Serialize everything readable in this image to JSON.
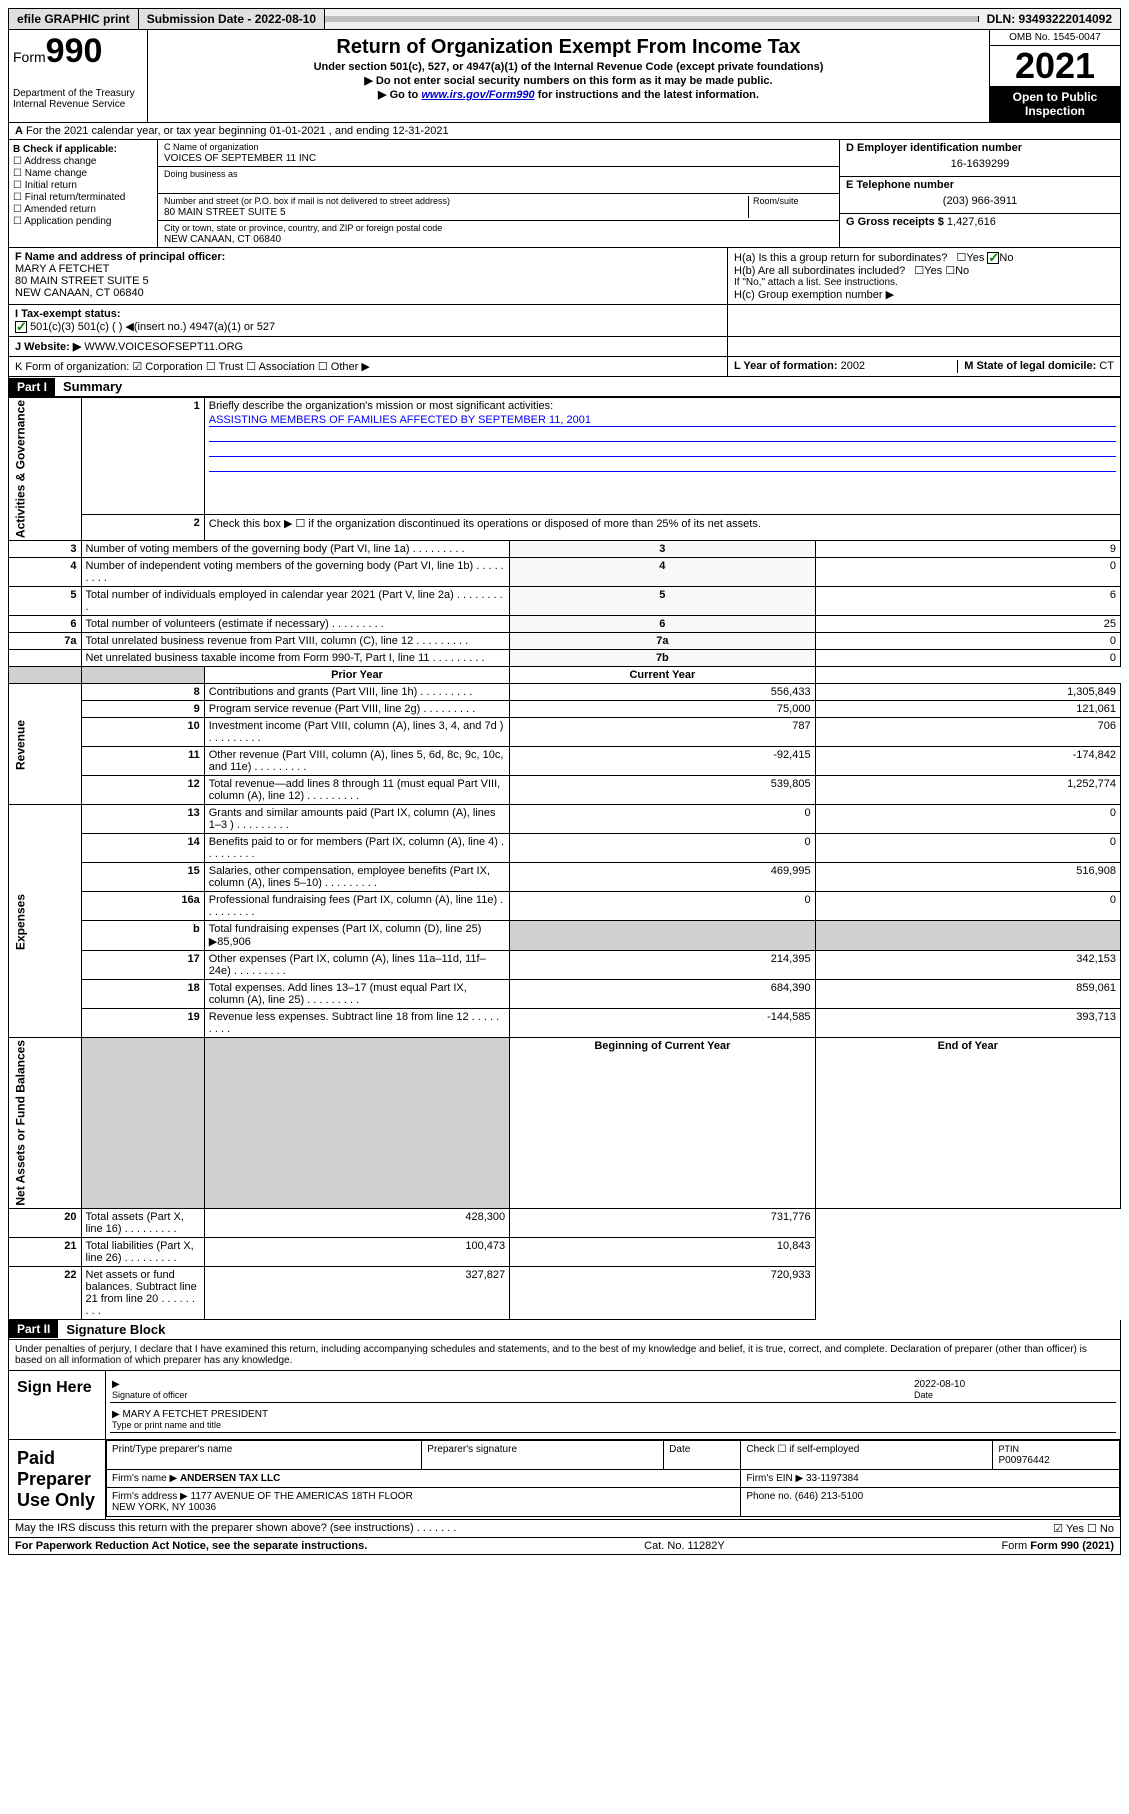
{
  "top": {
    "efile": "efile GRAPHIC print",
    "subdate_label": "Submission Date - 2022-08-10",
    "dln": "DLN: 93493222014092"
  },
  "header": {
    "form_prefix": "Form",
    "form_number": "990",
    "dept": "Department of the Treasury",
    "irs": "Internal Revenue Service",
    "title": "Return of Organization Exempt From Income Tax",
    "sub1": "Under section 501(c), 527, or 4947(a)(1) of the Internal Revenue Code (except private foundations)",
    "sub2": "▶ Do not enter social security numbers on this form as it may be made public.",
    "sub3_prefix": "▶ Go to ",
    "sub3_link": "www.irs.gov/Form990",
    "sub3_suffix": " for instructions and the latest information.",
    "omb": "OMB No. 1545-0047",
    "year": "2021",
    "open": "Open to Public Inspection"
  },
  "lineA": "For the 2021 calendar year, or tax year beginning 01-01-2021   , and ending 12-31-2021",
  "boxB": {
    "label": "B Check if applicable:",
    "opts": [
      "Address change",
      "Name change",
      "Initial return",
      "Final return/terminated",
      "Amended return",
      "Application pending"
    ]
  },
  "boxC": {
    "name_label": "C Name of organization",
    "name": "VOICES OF SEPTEMBER 11 INC",
    "dba_label": "Doing business as",
    "addr_label": "Number and street (or P.O. box if mail is not delivered to street address)",
    "room_label": "Room/suite",
    "addr": "80 MAIN STREET SUITE 5",
    "city_label": "City or town, state or province, country, and ZIP or foreign postal code",
    "city": "NEW CANAAN, CT  06840"
  },
  "boxD": {
    "label": "D Employer identification number",
    "val": "16-1639299"
  },
  "boxE": {
    "label": "E Telephone number",
    "val": "(203) 966-3911"
  },
  "boxG": {
    "label": "G Gross receipts $",
    "val": "1,427,616"
  },
  "boxF": {
    "label": "F  Name and address of principal officer:",
    "name": "MARY A FETCHET",
    "addr1": "80 MAIN STREET SUITE 5",
    "addr2": "NEW CANAAN, CT  06840"
  },
  "boxH": {
    "a": "H(a)  Is this a group return for subordinates?",
    "a_ans": "No",
    "b": "H(b)  Are all subordinates included?",
    "b_note": "If \"No,\" attach a list. See instructions.",
    "c": "H(c)  Group exemption number ▶"
  },
  "boxI": {
    "label": "I   Tax-exempt status:",
    "opts": "501(c)(3)      501(c) (  ) ◀(insert no.)      4947(a)(1) or      527"
  },
  "boxJ": {
    "label": "J   Website: ▶",
    "val": "WWW.VOICESOFSEPT11.ORG"
  },
  "boxK": "K Form of organization:  ☑ Corporation  ☐ Trust  ☐ Association  ☐ Other ▶",
  "boxL": {
    "label": "L Year of formation:",
    "val": "2002"
  },
  "boxM": {
    "label": "M State of legal domicile:",
    "val": "CT"
  },
  "part1": {
    "header": "Part I",
    "title": "Summary",
    "line1": "Briefly describe the organization's mission or most significant activities:",
    "line1_val": "ASSISTING MEMBERS OF FAMILIES AFFECTED BY SEPTEMBER 11, 2001",
    "line2": "Check this box ▶ ☐  if the organization discontinued its operations or disposed of more than 25% of its net assets.",
    "vert_gov": "Activities & Governance",
    "vert_rev": "Revenue",
    "vert_exp": "Expenses",
    "vert_net": "Net Assets or Fund Balances",
    "col_prior": "Prior Year",
    "col_current": "Current Year",
    "col_begin": "Beginning of Current Year",
    "col_end": "End of Year",
    "rows_gov": [
      {
        "n": "3",
        "t": "Number of voting members of the governing body (Part VI, line 1a)",
        "box": "3",
        "v": "9"
      },
      {
        "n": "4",
        "t": "Number of independent voting members of the governing body (Part VI, line 1b)",
        "box": "4",
        "v": "0"
      },
      {
        "n": "5",
        "t": "Total number of individuals employed in calendar year 2021 (Part V, line 2a)",
        "box": "5",
        "v": "6"
      },
      {
        "n": "6",
        "t": "Total number of volunteers (estimate if necessary)",
        "box": "6",
        "v": "25"
      },
      {
        "n": "7a",
        "t": "Total unrelated business revenue from Part VIII, column (C), line 12",
        "box": "7a",
        "v": "0"
      },
      {
        "n": "",
        "t": "Net unrelated business taxable income from Form 990-T, Part I, line 11",
        "box": "7b",
        "v": "0"
      }
    ],
    "rows_rev": [
      {
        "n": "8",
        "t": "Contributions and grants (Part VIII, line 1h)",
        "p": "556,433",
        "c": "1,305,849"
      },
      {
        "n": "9",
        "t": "Program service revenue (Part VIII, line 2g)",
        "p": "75,000",
        "c": "121,061"
      },
      {
        "n": "10",
        "t": "Investment income (Part VIII, column (A), lines 3, 4, and 7d )",
        "p": "787",
        "c": "706"
      },
      {
        "n": "11",
        "t": "Other revenue (Part VIII, column (A), lines 5, 6d, 8c, 9c, 10c, and 11e)",
        "p": "-92,415",
        "c": "-174,842"
      },
      {
        "n": "12",
        "t": "Total revenue—add lines 8 through 11 (must equal Part VIII, column (A), line 12)",
        "p": "539,805",
        "c": "1,252,774"
      }
    ],
    "rows_exp": [
      {
        "n": "13",
        "t": "Grants and similar amounts paid (Part IX, column (A), lines 1–3 )",
        "p": "0",
        "c": "0"
      },
      {
        "n": "14",
        "t": "Benefits paid to or for members (Part IX, column (A), line 4)",
        "p": "0",
        "c": "0"
      },
      {
        "n": "15",
        "t": "Salaries, other compensation, employee benefits (Part IX, column (A), lines 5–10)",
        "p": "469,995",
        "c": "516,908"
      },
      {
        "n": "16a",
        "t": "Professional fundraising fees (Part IX, column (A), line 11e)",
        "p": "0",
        "c": "0"
      },
      {
        "n": "b",
        "t": "Total fundraising expenses (Part IX, column (D), line 25) ▶85,906",
        "p": "",
        "c": "",
        "shaded": true
      },
      {
        "n": "17",
        "t": "Other expenses (Part IX, column (A), lines 11a–11d, 11f–24e)",
        "p": "214,395",
        "c": "342,153"
      },
      {
        "n": "18",
        "t": "Total expenses. Add lines 13–17 (must equal Part IX, column (A), line 25)",
        "p": "684,390",
        "c": "859,061"
      },
      {
        "n": "19",
        "t": "Revenue less expenses. Subtract line 18 from line 12",
        "p": "-144,585",
        "c": "393,713"
      }
    ],
    "rows_net": [
      {
        "n": "20",
        "t": "Total assets (Part X, line 16)",
        "p": "428,300",
        "c": "731,776"
      },
      {
        "n": "21",
        "t": "Total liabilities (Part X, line 26)",
        "p": "100,473",
        "c": "10,843"
      },
      {
        "n": "22",
        "t": "Net assets or fund balances. Subtract line 21 from line 20",
        "p": "327,827",
        "c": "720,933"
      }
    ]
  },
  "part2": {
    "header": "Part II",
    "title": "Signature Block",
    "decl": "Under penalties of perjury, I declare that I have examined this return, including accompanying schedules and statements, and to the best of my knowledge and belief, it is true, correct, and complete. Declaration of preparer (other than officer) is based on all information of which preparer has any knowledge."
  },
  "sign": {
    "label": "Sign Here",
    "sig_label": "Signature of officer",
    "date_label": "Date",
    "date": "2022-08-10",
    "name": "MARY A FETCHET  PRESIDENT",
    "name_label": "Type or print name and title"
  },
  "preparer": {
    "label": "Paid Preparer Use Only",
    "c1": "Print/Type preparer's name",
    "c2": "Preparer's signature",
    "c3": "Date",
    "c4": "Check ☐ if self-employed",
    "c5_label": "PTIN",
    "c5": "P00976442",
    "firm_label": "Firm's name   ▶",
    "firm": "ANDERSEN TAX LLC",
    "ein_label": "Firm's EIN ▶",
    "ein": "33-1197384",
    "addr_label": "Firm's address ▶",
    "addr": "1177 AVENUE OF THE AMERICAS 18TH FLOOR\nNEW YORK, NY  10036",
    "phone_label": "Phone no.",
    "phone": "(646) 213-5100"
  },
  "footer": {
    "q": "May the IRS discuss this return with the preparer shown above? (see instructions)",
    "ans": "☑ Yes  ☐ No",
    "paperwork": "For Paperwork Reduction Act Notice, see the separate instructions.",
    "cat": "Cat. No. 11282Y",
    "form": "Form 990 (2021)"
  }
}
